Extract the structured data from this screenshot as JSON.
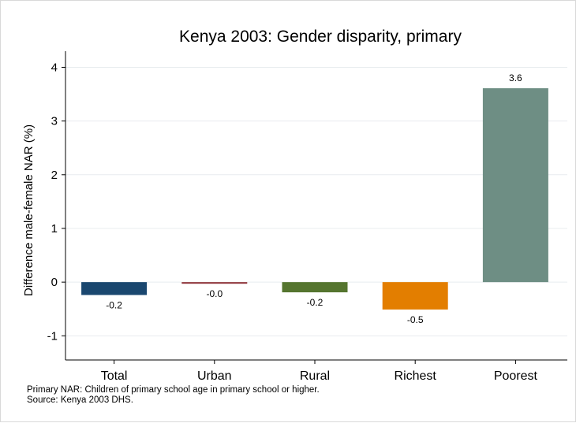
{
  "chart_data": {
    "type": "bar",
    "title": "Kenya 2003: Gender disparity, primary",
    "xlabel": "",
    "ylabel": "Difference male-female NAR (%)",
    "categories": [
      "Total",
      "Urban",
      "Rural",
      "Richest",
      "Poorest"
    ],
    "values": [
      -0.24,
      -0.03,
      -0.19,
      -0.51,
      3.61
    ],
    "value_labels": [
      "-0.2",
      "-0.0",
      "-0.2",
      "-0.5",
      "3.6"
    ],
    "colors": [
      "#1a476f",
      "#90353b",
      "#55752f",
      "#e37e00",
      "#6e8e84"
    ],
    "ylim": [
      -1.45,
      4.3
    ],
    "yticks": [
      -1,
      0,
      1,
      2,
      3,
      4
    ],
    "ytick_labels": [
      "-1",
      "0",
      "1",
      "2",
      "3",
      "4"
    ],
    "grid": true,
    "legend": "none"
  },
  "notes": {
    "line1": "Primary NAR: Children of primary school age in primary school or higher.",
    "line2": "Source: Kenya 2003 DHS."
  }
}
